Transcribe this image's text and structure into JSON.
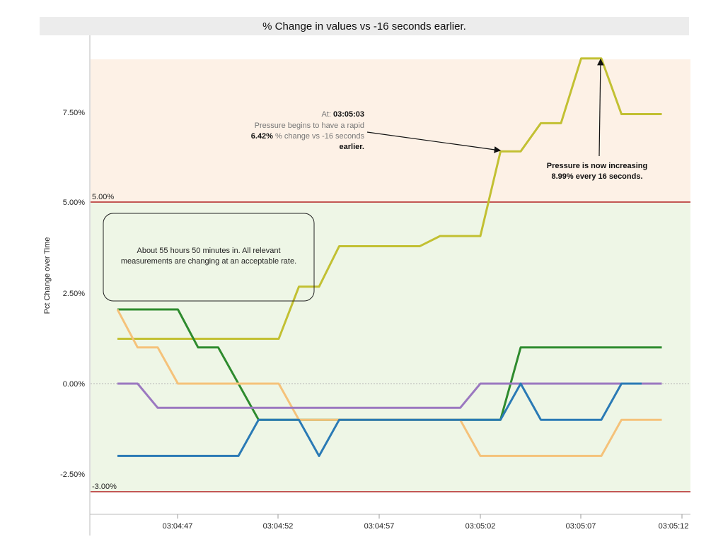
{
  "chart_data": {
    "type": "line",
    "title": "% Change in values vs -16 seconds earlier.",
    "ylabel": "Pct Change over Time",
    "xlabel": "",
    "x_ticks": [
      "03:04:47",
      "03:04:52",
      "03:04:57",
      "03:05:02",
      "03:05:07",
      "03:05:12"
    ],
    "y_ticks": [
      "7.50%",
      "5.00%",
      "2.50%",
      "0.00%",
      "-2.50%"
    ],
    "ylim": [
      -3.6,
      10.4
    ],
    "xlim": [
      -1,
      26.7
    ],
    "thresholds": [
      {
        "value": 5.0,
        "label": "5.00%",
        "color": "#b22222"
      },
      {
        "value": -3.0,
        "label": "-3.00%",
        "color": "#b22222"
      }
    ],
    "bands": [
      {
        "from": 5.0,
        "to": 9.0,
        "color": "#fdf1e6"
      },
      {
        "from": -3.0,
        "to": 5.0,
        "color": "#eef6e6"
      }
    ],
    "series": [
      {
        "color": "#c2c032",
        "points": [
          [
            0,
            1.24
          ],
          [
            8,
            1.24
          ],
          [
            9,
            2.68
          ],
          [
            10,
            2.68
          ],
          [
            11,
            3.8
          ],
          [
            15,
            3.8
          ],
          [
            16,
            4.08
          ],
          [
            18,
            4.08
          ],
          [
            19,
            6.42
          ],
          [
            20,
            6.42
          ],
          [
            21,
            7.2
          ],
          [
            22,
            7.2
          ],
          [
            23,
            8.99
          ],
          [
            24,
            8.99
          ],
          [
            25,
            7.45
          ],
          [
            27,
            7.45
          ]
        ]
      },
      {
        "color": "#2e8b2e",
        "points": [
          [
            0,
            2.05
          ],
          [
            3,
            2.05
          ],
          [
            4,
            1.0
          ],
          [
            5,
            1.0
          ],
          [
            7,
            -1.0
          ],
          [
            19,
            -1.0
          ],
          [
            20,
            1.0
          ],
          [
            27,
            1.0
          ]
        ]
      },
      {
        "color": "#f5c27a",
        "points": [
          [
            0,
            2.05
          ],
          [
            1,
            1.0
          ],
          [
            2,
            1.0
          ],
          [
            3,
            0.0
          ],
          [
            8,
            0.0
          ],
          [
            9,
            -1.0
          ],
          [
            17,
            -1.0
          ],
          [
            18,
            -2.0
          ],
          [
            24,
            -2.0
          ],
          [
            25,
            -1.0
          ],
          [
            27,
            -1.0
          ]
        ]
      },
      {
        "color": "#9b78c0",
        "points": [
          [
            0,
            0.0
          ],
          [
            1,
            0.0
          ],
          [
            2,
            -0.67
          ],
          [
            17,
            -0.67
          ],
          [
            18,
            0.0
          ],
          [
            27,
            0.0
          ]
        ]
      },
      {
        "color": "#2a7ab5",
        "points": [
          [
            0,
            -2.0
          ],
          [
            6,
            -2.0
          ],
          [
            7,
            -1.0
          ],
          [
            9,
            -1.0
          ],
          [
            10,
            -2.0
          ],
          [
            11,
            -1.0
          ],
          [
            19,
            -1.0
          ],
          [
            20,
            0.0
          ],
          [
            21,
            -1.0
          ],
          [
            24,
            -1.0
          ],
          [
            25,
            0.0
          ],
          [
            26,
            0.0
          ]
        ]
      }
    ],
    "annotations": [
      {
        "lines": [
          "At: 03:05:03",
          "Pressure begins to have a rapid",
          "6.42% % change vs -16 seconds",
          "earlier."
        ]
      },
      {
        "lines": [
          "Pressure is now increasing",
          "8.99% every 16 seconds."
        ]
      },
      {
        "lines": [
          "About 55 hours 50 minutes in.  All relevant",
          "measurements are changing at an acceptable rate."
        ]
      }
    ]
  }
}
